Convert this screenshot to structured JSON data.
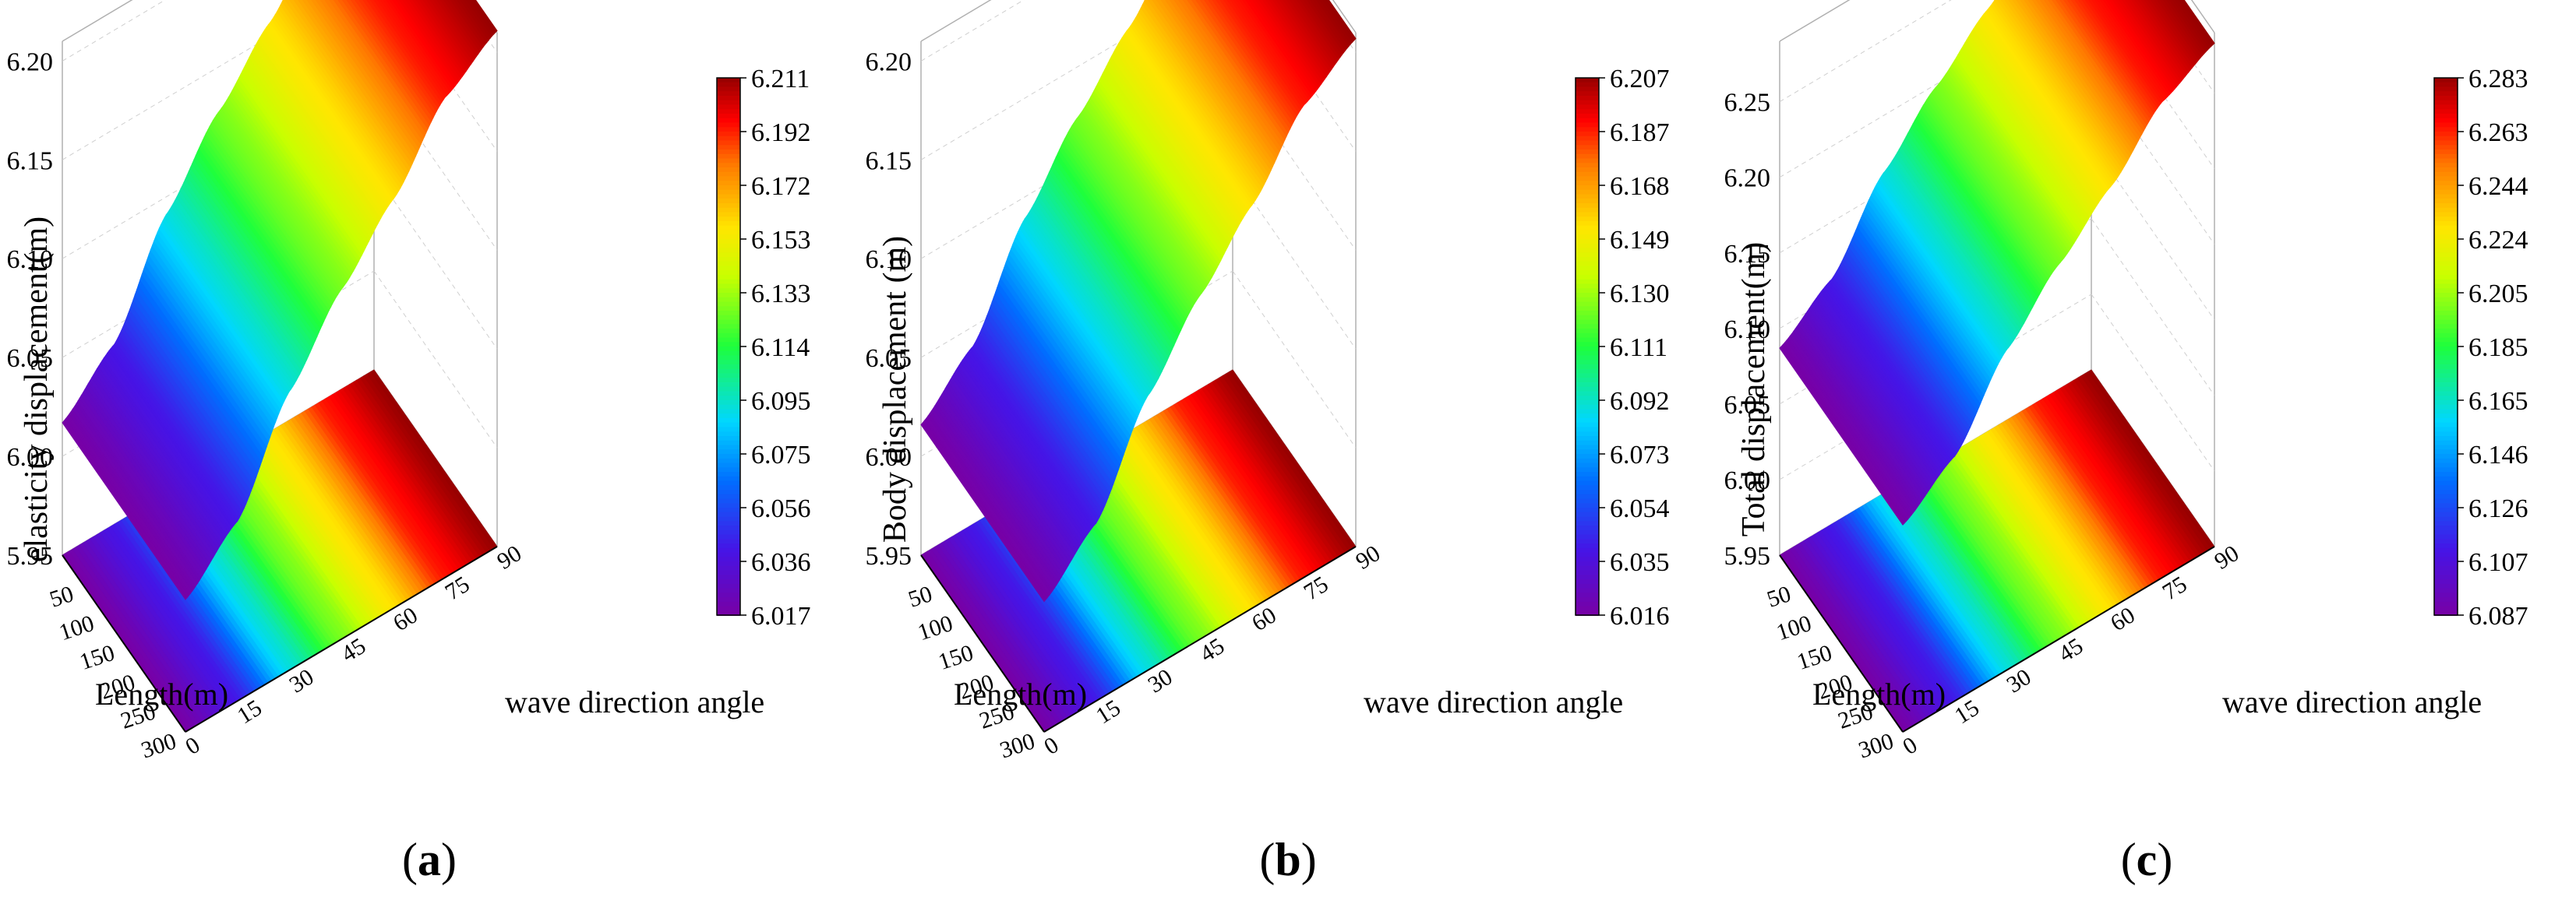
{
  "chart_data": [
    {
      "type": "surface3d",
      "panel_label": "a",
      "zlabel": "elasticity  displacement(m)",
      "xlabel": "Length(m)",
      "ylabel": "wave direction angle",
      "x_ticks": [
        "50",
        "100",
        "150",
        "200",
        "250",
        "300"
      ],
      "y_ticks": [
        "0",
        "15",
        "30",
        "45",
        "60",
        "75",
        "90"
      ],
      "z_ticks": [
        "5.95",
        "6.00",
        "6.05",
        "6.10",
        "6.15",
        "6.20"
      ],
      "zlim": [
        5.95,
        6.21
      ],
      "colorbar_ticks": [
        "6.211",
        "6.192",
        "6.172",
        "6.153",
        "6.133",
        "6.114",
        "6.095",
        "6.075",
        "6.056",
        "6.036",
        "6.017"
      ],
      "colorbar_range": [
        6.017,
        6.211
      ],
      "angle": [
        0,
        15,
        30,
        45,
        60,
        75,
        90
      ],
      "values": [
        6.017,
        6.041,
        6.091,
        6.127,
        6.157,
        6.193,
        6.211
      ]
    },
    {
      "type": "surface3d",
      "panel_label": "b",
      "zlabel": "Body displacement (m)",
      "xlabel": "Length(m)",
      "ylabel": "wave direction angle",
      "x_ticks": [
        "50",
        "100",
        "150",
        "200",
        "250",
        "300"
      ],
      "y_ticks": [
        "0",
        "15",
        "30",
        "45",
        "60",
        "75",
        "90"
      ],
      "z_ticks": [
        "5.95",
        "6.00",
        "6.05",
        "6.10",
        "6.15",
        "6.20"
      ],
      "zlim": [
        5.95,
        6.21
      ],
      "colorbar_ticks": [
        "6.207",
        "6.187",
        "6.168",
        "6.149",
        "6.130",
        "6.111",
        "6.092",
        "6.073",
        "6.054",
        "6.035",
        "6.016"
      ],
      "colorbar_range": [
        6.016,
        6.207
      ],
      "angle": [
        0,
        15,
        30,
        45,
        60,
        75,
        90
      ],
      "values": [
        6.016,
        6.04,
        6.089,
        6.124,
        6.154,
        6.189,
        6.207
      ]
    },
    {
      "type": "surface3d",
      "panel_label": "c",
      "zlabel": "Total displacement(m)",
      "xlabel": "Length(m)",
      "ylabel": "wave direction angle",
      "x_ticks": [
        "50",
        "100",
        "150",
        "200",
        "250",
        "300"
      ],
      "y_ticks": [
        "0",
        "15",
        "30",
        "45",
        "60",
        "75",
        "90"
      ],
      "z_ticks": [
        "5.95",
        "6.00",
        "6.05",
        "6.10",
        "6.15",
        "6.20",
        "6.25"
      ],
      "zlim": [
        5.95,
        6.29
      ],
      "colorbar_ticks": [
        "6.283",
        "6.263",
        "6.244",
        "6.224",
        "6.205",
        "6.185",
        "6.165",
        "6.146",
        "6.126",
        "6.107",
        "6.087"
      ],
      "colorbar_range": [
        6.087,
        6.283
      ],
      "angle": [
        0,
        15,
        30,
        45,
        60,
        75,
        90
      ],
      "values": [
        6.087,
        6.112,
        6.162,
        6.198,
        6.229,
        6.265,
        6.283
      ]
    }
  ]
}
